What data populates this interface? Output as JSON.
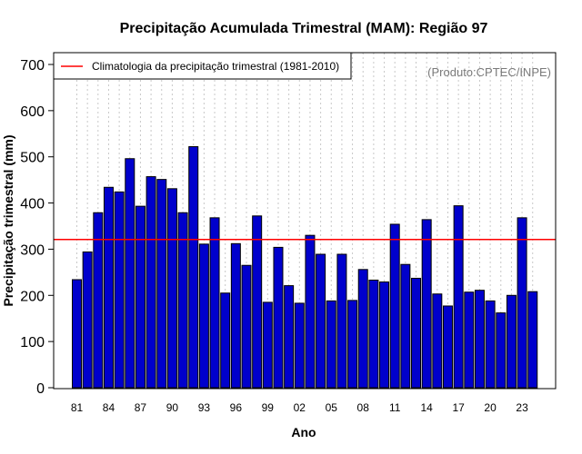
{
  "chart_data": {
    "type": "bar",
    "title": "Precipitação Acumulada Trimestral (MAM): Região 97",
    "xlabel": "Ano",
    "ylabel": "Precipitação trimestral (mm)",
    "ylim": [
      0,
      700
    ],
    "yticks": [
      0,
      100,
      200,
      300,
      400,
      500,
      600,
      700
    ],
    "grid": "vertical dotted",
    "categories": [
      "1981",
      "1982",
      "1983",
      "1984",
      "1985",
      "1986",
      "1987",
      "1988",
      "1989",
      "1990",
      "1991",
      "1992",
      "1993",
      "1994",
      "1995",
      "1996",
      "1997",
      "1998",
      "1999",
      "2000",
      "2001",
      "2002",
      "2003",
      "2004",
      "2005",
      "2006",
      "2007",
      "2008",
      "2009",
      "2010",
      "2011",
      "2012",
      "2013",
      "2014",
      "2015",
      "2016",
      "2017",
      "2018",
      "2019",
      "2020",
      "2021",
      "2022",
      "2023",
      "2024"
    ],
    "xtick_labels": [
      "81",
      "84",
      "87",
      "90",
      "93",
      "96",
      "99",
      "02",
      "05",
      "08",
      "11",
      "14",
      "17",
      "20",
      "23"
    ],
    "xtick_every": 3,
    "values": [
      234,
      294,
      379,
      434,
      424,
      496,
      393,
      457,
      451,
      431,
      379,
      522,
      311,
      368,
      205,
      312,
      265,
      372,
      185,
      304,
      221,
      183,
      330,
      289,
      188,
      289,
      189,
      256,
      233,
      229,
      354,
      267,
      237,
      364,
      203,
      177,
      394,
      207,
      211,
      188,
      162,
      200,
      368,
      208
    ],
    "bar_color": "#0000cc",
    "bar_edge_color": "#000000",
    "reference_line": {
      "value": 321,
      "color": "#ff0000",
      "label": "Climatologia da precipitação trimestral (1981-2010)"
    },
    "legend_position": "top-left",
    "credit": "(Produto:CPTEC/INPE)"
  }
}
